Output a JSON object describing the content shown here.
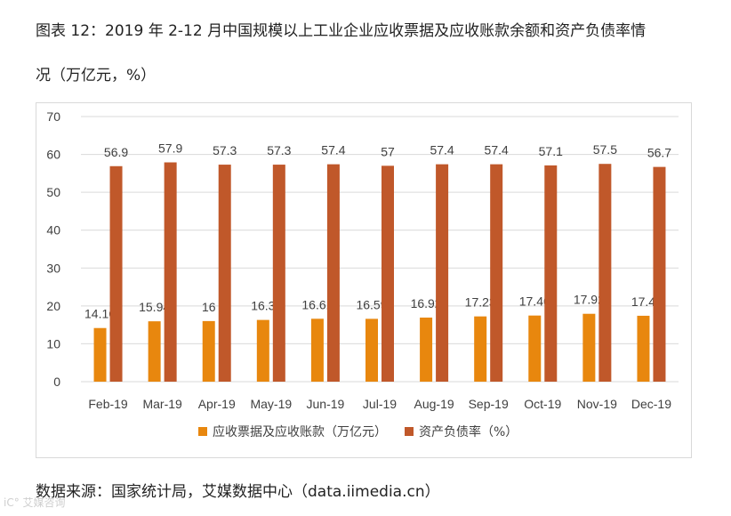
{
  "header": {
    "title_line1": "图表 12：2019 年 2-12 月中国规模以上工业企业应收票据及应收账款余额和资产负债率情",
    "title_line2": "况（万亿元，%）"
  },
  "source": "数据来源：国家统计局，艾媒数据中心（data.iimedia.cn）",
  "watermark": "iC° 艾媒咨询",
  "colors": {
    "series1": "#e8870e",
    "series2": "#c0582a",
    "gridline": "#d9d9d9",
    "text": "#404040"
  },
  "chart_data": {
    "type": "bar",
    "title": "",
    "xlabel": "",
    "ylabel": "",
    "ylim": [
      0,
      70
    ],
    "yticks": [
      0,
      10,
      20,
      30,
      40,
      50,
      60,
      70
    ],
    "grid": true,
    "legend_position": "bottom",
    "categories": [
      "Feb-19",
      "Mar-19",
      "Apr-19",
      "May-19",
      "Jun-19",
      "Jul-19",
      "Aug-19",
      "Sep-19",
      "Oct-19",
      "Nov-19",
      "Dec-19"
    ],
    "series": [
      {
        "name": "应收票据及应收账款（万亿元）",
        "values": [
          14.16,
          15.94,
          16,
          16.3,
          16.61,
          16.59,
          16.92,
          17.23,
          17.46,
          17.92,
          17.4
        ],
        "labels": [
          "14.16",
          "15.94",
          "16",
          "16.3",
          "16.61",
          "16.59",
          "16.92",
          "17.23",
          "17.46",
          "17.92",
          "17.4"
        ]
      },
      {
        "name": "资产负债率（%）",
        "values": [
          56.9,
          57.9,
          57.3,
          57.3,
          57.4,
          57,
          57.4,
          57.4,
          57.1,
          57.5,
          56.7
        ],
        "labels": [
          "56.9",
          "57.9",
          "57.3",
          "57.3",
          "57.4",
          "57",
          "57.4",
          "57.4",
          "57.1",
          "57.5",
          "56.7"
        ]
      }
    ]
  }
}
